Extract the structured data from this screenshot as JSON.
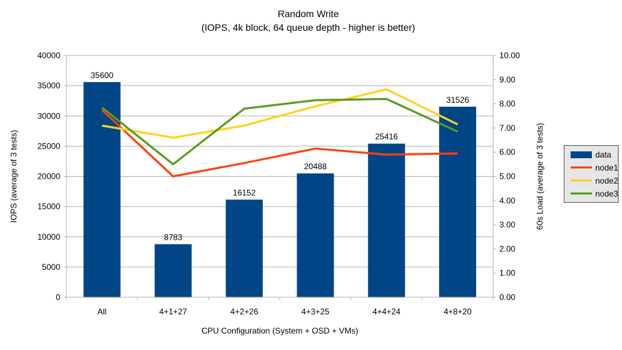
{
  "title": "Random Write",
  "subtitle": "(IOPS, 4k block, 64 queue depth - higher is better)",
  "chart_data": {
    "type": "bar",
    "combo": "bars on left axis + lines on right axis",
    "categories": [
      "All",
      "4+1+27",
      "4+2+26",
      "4+3+25",
      "4+4+24",
      "4+8+20"
    ],
    "bar_series": {
      "name": "data",
      "color": "#004586",
      "axis": "left",
      "values": [
        35600,
        8783,
        16152,
        20488,
        25416,
        31526
      ],
      "data_labels": [
        "35600",
        "8783",
        "16152",
        "20488",
        "25416",
        "31526"
      ]
    },
    "line_series": [
      {
        "name": "node1",
        "color": "#ff420e",
        "axis": "right",
        "values": [
          7.75,
          5.0,
          5.55,
          6.15,
          5.9,
          5.95
        ]
      },
      {
        "name": "node2",
        "color": "#ffd320",
        "axis": "right",
        "values": [
          7.1,
          6.6,
          7.1,
          7.9,
          8.6,
          7.15
        ]
      },
      {
        "name": "node3",
        "color": "#579d1c",
        "axis": "right",
        "values": [
          7.85,
          5.5,
          7.8,
          8.15,
          8.2,
          6.85
        ]
      }
    ],
    "left_axis": {
      "label": "IOPS (average of 3 tests)",
      "min": 0,
      "max": 40000,
      "step": 5000,
      "tick_labels": [
        "0",
        "5000",
        "10000",
        "15000",
        "20000",
        "25000",
        "30000",
        "35000",
        "40000"
      ]
    },
    "right_axis": {
      "label": "60s Load (average of 3 tests)",
      "min": 0,
      "max": 10,
      "step": 1,
      "tick_labels": [
        "0.00",
        "1.00",
        "2.00",
        "3.00",
        "4.00",
        "5.00",
        "6.00",
        "7.00",
        "8.00",
        "9.00",
        "10.00"
      ]
    },
    "x_axis": {
      "label": "CPU Configuration (System + OSD + VMs)"
    },
    "grid": {
      "horizontal": true,
      "vertical": false,
      "color": "#b3b3b3"
    },
    "axis_line_color": "#b3b3b3",
    "legend": {
      "position": "right",
      "background": "#e6e6e6",
      "entries": [
        {
          "label": "data",
          "color": "#004586",
          "swatch": "box"
        },
        {
          "label": "node1",
          "color": "#ff420e",
          "swatch": "line"
        },
        {
          "label": "node2",
          "color": "#ffd320",
          "swatch": "line"
        },
        {
          "label": "node3",
          "color": "#579d1c",
          "swatch": "line"
        }
      ]
    }
  }
}
